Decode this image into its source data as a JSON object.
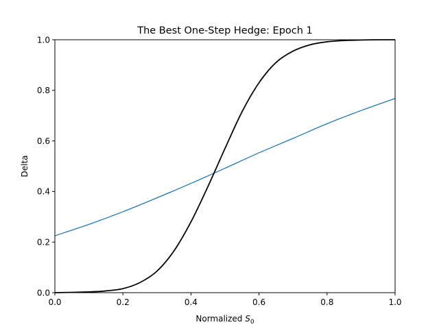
{
  "chart_data": {
    "type": "line",
    "title": "The Best One-Step Hedge: Epoch 1",
    "xlabel_main": "Normalized ",
    "xlabel_var": "S",
    "xlabel_sub": "0",
    "ylabel": "Delta",
    "xlim": [
      0.0,
      1.0
    ],
    "ylim": [
      0.0,
      1.0
    ],
    "xticks": [
      "0.0",
      "0.2",
      "0.4",
      "0.6",
      "0.8",
      "1.0"
    ],
    "yticks": [
      "0.0",
      "0.2",
      "0.4",
      "0.6",
      "0.8",
      "1.0"
    ],
    "grid": false,
    "legend": "none",
    "series": [
      {
        "color": "#1f77b4",
        "x": [
          0.0,
          0.1,
          0.2,
          0.3,
          0.4,
          0.5,
          0.6,
          0.7,
          0.8,
          0.9,
          1.0
        ],
        "y": [
          0.225,
          0.27,
          0.32,
          0.375,
          0.432,
          0.492,
          0.553,
          0.61,
          0.668,
          0.72,
          0.768
        ]
      },
      {
        "color": "#000000",
        "x": [
          0.0,
          0.1,
          0.15,
          0.2,
          0.25,
          0.3,
          0.35,
          0.4,
          0.45,
          0.5,
          0.55,
          0.6,
          0.65,
          0.7,
          0.75,
          0.8,
          0.85,
          0.9,
          0.95,
          1.0
        ],
        "y": [
          0.0,
          0.003,
          0.007,
          0.016,
          0.04,
          0.085,
          0.165,
          0.28,
          0.42,
          0.57,
          0.715,
          0.83,
          0.91,
          0.955,
          0.98,
          0.992,
          0.997,
          0.999,
          1.0,
          1.0
        ]
      }
    ]
  }
}
